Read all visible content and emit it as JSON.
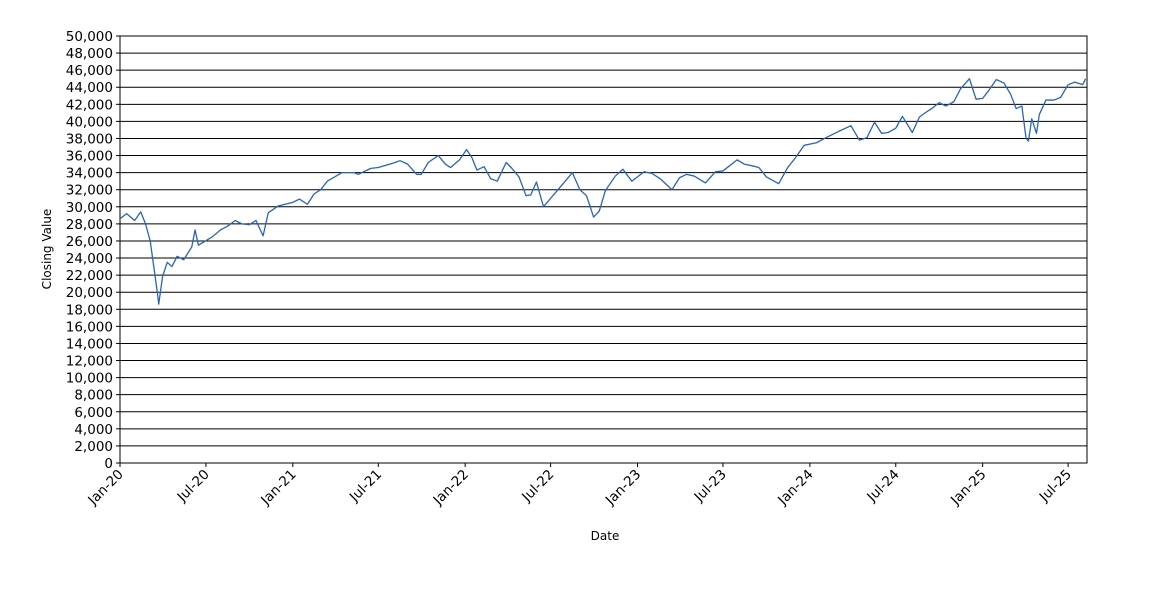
{
  "chart_data": {
    "type": "line",
    "title": "",
    "xlabel": "Date",
    "ylabel": "Closing Value",
    "ylim": [
      0,
      50000
    ],
    "xlim": [
      "2020-01-01",
      "2025-08-10"
    ],
    "grid": true,
    "y_ticks": [
      0,
      2000,
      4000,
      6000,
      8000,
      10000,
      12000,
      14000,
      16000,
      18000,
      20000,
      22000,
      24000,
      26000,
      28000,
      30000,
      32000,
      34000,
      36000,
      38000,
      40000,
      42000,
      44000,
      46000,
      48000,
      50000
    ],
    "y_tick_labels": [
      "0",
      "2,000",
      "4,000",
      "6,000",
      "8,000",
      "10,000",
      "12,000",
      "14,000",
      "16,000",
      "18,000",
      "20,000",
      "22,000",
      "24,000",
      "26,000",
      "28,000",
      "30,000",
      "32,000",
      "34,000",
      "36,000",
      "38,000",
      "40,000",
      "42,000",
      "44,000",
      "46,000",
      "48,000",
      "50,000"
    ],
    "x_ticks": [
      "2020-01-01",
      "2020-07-01",
      "2021-01-01",
      "2021-07-01",
      "2022-01-01",
      "2022-07-01",
      "2023-01-01",
      "2023-07-01",
      "2024-01-01",
      "2024-07-01",
      "2025-01-01",
      "2025-07-01"
    ],
    "x_tick_labels": [
      "Jan-20",
      "Jul-20",
      "Jan-21",
      "Jul-21",
      "Jan-22",
      "Jul-22",
      "Jan-23",
      "Jul-23",
      "Jan-24",
      "Jul-24",
      "Jan-25",
      "Jul-25"
    ],
    "series": [
      {
        "color": "#2a64b4",
        "x": [
          "2020-01-01",
          "2020-01-15",
          "2020-02-01",
          "2020-02-14",
          "2020-02-24",
          "2020-03-05",
          "2020-03-12",
          "2020-03-20",
          "2020-03-23",
          "2020-03-31",
          "2020-04-10",
          "2020-04-20",
          "2020-05-01",
          "2020-05-15",
          "2020-06-01",
          "2020-06-08",
          "2020-06-15",
          "2020-06-30",
          "2020-07-15",
          "2020-08-01",
          "2020-08-15",
          "2020-09-01",
          "2020-09-15",
          "2020-10-01",
          "2020-10-15",
          "2020-10-30",
          "2020-11-10",
          "2020-12-01",
          "2020-12-31",
          "2021-01-15",
          "2021-02-01",
          "2021-02-15",
          "2021-03-01",
          "2021-03-15",
          "2021-04-15",
          "2021-05-10",
          "2021-05-20",
          "2021-06-15",
          "2021-07-01",
          "2021-08-01",
          "2021-08-16",
          "2021-09-01",
          "2021-09-20",
          "2021-09-30",
          "2021-10-15",
          "2021-11-05",
          "2021-11-20",
          "2021-12-01",
          "2021-12-20",
          "2022-01-04",
          "2022-01-15",
          "2022-01-26",
          "2022-02-10",
          "2022-02-24",
          "2022-03-10",
          "2022-03-29",
          "2022-04-10",
          "2022-04-25",
          "2022-05-10",
          "2022-05-20",
          "2022-06-01",
          "2022-06-16",
          "2022-07-01",
          "2022-07-15",
          "2022-08-01",
          "2022-08-16",
          "2022-09-01",
          "2022-09-15",
          "2022-09-30",
          "2022-10-12",
          "2022-10-25",
          "2022-11-15",
          "2022-12-01",
          "2022-12-20",
          "2023-01-15",
          "2023-02-01",
          "2023-02-20",
          "2023-03-15",
          "2023-03-31",
          "2023-04-15",
          "2023-05-01",
          "2023-05-25",
          "2023-06-15",
          "2023-07-01",
          "2023-07-31",
          "2023-08-15",
          "2023-09-01",
          "2023-09-15",
          "2023-10-01",
          "2023-10-27",
          "2023-11-15",
          "2023-12-01",
          "2023-12-20",
          "2024-01-15",
          "2024-02-01",
          "2024-03-01",
          "2024-03-28",
          "2024-04-15",
          "2024-05-01",
          "2024-05-17",
          "2024-06-01",
          "2024-06-15",
          "2024-07-01",
          "2024-07-15",
          "2024-08-05",
          "2024-08-20",
          "2024-09-01",
          "2024-09-15",
          "2024-10-01",
          "2024-10-15",
          "2024-11-01",
          "2024-11-15",
          "2024-12-04",
          "2024-12-18",
          "2025-01-01",
          "2025-01-15",
          "2025-01-30",
          "2025-02-15",
          "2025-03-01",
          "2025-03-13",
          "2025-03-25",
          "2025-04-03",
          "2025-04-08",
          "2025-04-15",
          "2025-04-25",
          "2025-05-01",
          "2025-05-15",
          "2025-06-01",
          "2025-06-15",
          "2025-07-01",
          "2025-07-15",
          "2025-08-01",
          "2025-08-07"
        ],
        "values": [
          28600,
          29200,
          28400,
          29400,
          28000,
          26000,
          23200,
          20000,
          18600,
          21800,
          23500,
          23000,
          24200,
          23800,
          25300,
          27300,
          25500,
          26000,
          26500,
          27300,
          27700,
          28400,
          28000,
          27900,
          28400,
          26600,
          29300,
          30100,
          30500,
          30900,
          30300,
          31500,
          32000,
          33000,
          34000,
          34000,
          33800,
          34500,
          34600,
          35100,
          35400,
          35000,
          33800,
          33800,
          35200,
          36000,
          35000,
          34600,
          35500,
          36700,
          35800,
          34300,
          34700,
          33300,
          33000,
          35200,
          34500,
          33500,
          31300,
          31400,
          32900,
          30000,
          31000,
          31900,
          33000,
          34000,
          32000,
          31300,
          28800,
          29500,
          31900,
          33600,
          34400,
          33000,
          34100,
          33900,
          33200,
          32000,
          33400,
          33800,
          33600,
          32800,
          34100,
          34200,
          35500,
          35000,
          34800,
          34600,
          33500,
          32700,
          34600,
          35700,
          37200,
          37500,
          38000,
          38800,
          39500,
          37800,
          38100,
          39900,
          38600,
          38700,
          39200,
          40600,
          38700,
          40500,
          41000,
          41500,
          42200,
          41800,
          42300,
          43800,
          45000,
          42600,
          42700,
          43700,
          44900,
          44500,
          43200,
          41500,
          41800,
          38000,
          37700,
          40300,
          38600,
          40800,
          42500,
          42500,
          42800,
          44300,
          44600,
          44300,
          45000
        ]
      }
    ]
  }
}
